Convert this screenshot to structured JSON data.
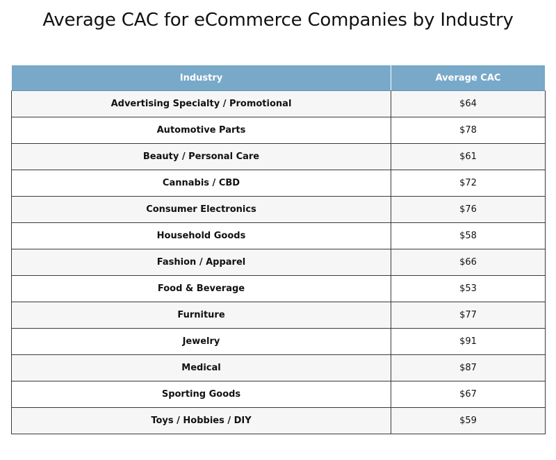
{
  "title": "Average CAC for eCommerce Companies by Industry",
  "colors": {
    "header_bg": "#78a9c9",
    "header_text": "#ffffff",
    "row_alt_bg": "#f6f6f6",
    "border": "#3a3a3a"
  },
  "chart_data": {
    "type": "table",
    "title": "Average CAC for eCommerce Companies by Industry",
    "columns": [
      "Industry",
      "Average CAC"
    ],
    "rows": [
      {
        "industry": "Advertising Specialty / Promotional",
        "cac": "$64"
      },
      {
        "industry": "Automotive Parts",
        "cac": "$78"
      },
      {
        "industry": "Beauty / Personal Care",
        "cac": "$61"
      },
      {
        "industry": "Cannabis / CBD",
        "cac": "$72"
      },
      {
        "industry": "Consumer Electronics",
        "cac": "$76"
      },
      {
        "industry": "Household Goods",
        "cac": "$58"
      },
      {
        "industry": "Fashion / Apparel",
        "cac": "$66"
      },
      {
        "industry": "Food & Beverage",
        "cac": "$53"
      },
      {
        "industry": "Furniture",
        "cac": "$77"
      },
      {
        "industry": "Jewelry",
        "cac": "$91"
      },
      {
        "industry": "Medical",
        "cac": "$87"
      },
      {
        "industry": "Sporting Goods",
        "cac": "$67"
      },
      {
        "industry": "Toys / Hobbies / DIY",
        "cac": "$59"
      }
    ]
  }
}
